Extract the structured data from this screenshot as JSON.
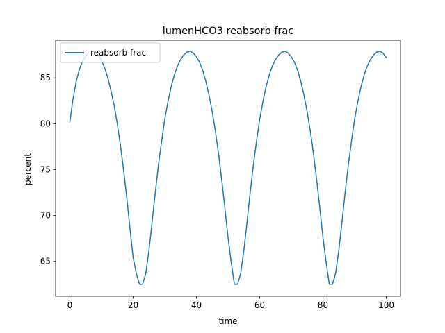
{
  "chart_data": {
    "type": "line",
    "title": "lumenHCO3 reabsorb frac",
    "xlabel": "time",
    "ylabel": "percent",
    "xlim": [
      -4.5,
      104.5
    ],
    "ylim": [
      61.2,
      89.1
    ],
    "xticks": [
      0,
      20,
      40,
      60,
      80,
      100
    ],
    "yticks": [
      65,
      70,
      75,
      80,
      85
    ],
    "grid": false,
    "legend": {
      "location": "upper left"
    },
    "series": [
      {
        "name": "reabsorb frac",
        "color": "#1f77b4",
        "x": [
          0,
          1,
          2,
          3,
          4,
          5,
          6,
          7,
          8,
          9,
          10,
          11,
          12,
          13,
          14,
          15,
          16,
          17,
          18,
          19,
          20,
          21,
          22,
          23,
          24,
          25,
          26,
          27,
          28,
          29,
          30,
          31,
          32,
          33,
          34,
          35,
          36,
          37,
          38,
          39,
          40,
          41,
          42,
          43,
          44,
          45,
          46,
          47,
          48,
          49,
          50,
          51,
          52,
          53,
          54,
          55,
          56,
          57,
          58,
          59,
          60,
          61,
          62,
          63,
          64,
          65,
          66,
          67,
          68,
          69,
          70,
          71,
          72,
          73,
          74,
          75,
          76,
          77,
          78,
          79,
          80,
          81,
          82,
          83,
          84,
          85,
          86,
          87,
          88,
          89,
          90,
          91,
          92,
          93,
          94,
          95,
          96,
          97,
          98,
          99,
          100
        ],
        "y": [
          80.2,
          82.7,
          84.6,
          85.9,
          86.8,
          87.4,
          87.8,
          87.9,
          87.8,
          87.5,
          86.9,
          86.1,
          85.0,
          83.6,
          82.0,
          80.0,
          77.6,
          74.9,
          71.9,
          68.6,
          65.4,
          63.7,
          62.5,
          62.5,
          63.7,
          66.2,
          69.3,
          72.5,
          75.5,
          78.1,
          80.5,
          82.4,
          84.0,
          85.3,
          86.3,
          87.0,
          87.5,
          87.8,
          87.9,
          87.7,
          87.3,
          86.7,
          85.8,
          84.6,
          83.1,
          81.3,
          79.2,
          76.7,
          73.9,
          70.8,
          67.6,
          64.9,
          62.5,
          62.5,
          63.7,
          66.2,
          69.3,
          72.5,
          75.5,
          78.1,
          80.5,
          82.4,
          84.0,
          85.3,
          86.3,
          87.0,
          87.5,
          87.8,
          87.9,
          87.7,
          87.3,
          86.7,
          85.8,
          84.6,
          83.1,
          81.3,
          79.2,
          76.7,
          73.9,
          70.8,
          67.6,
          64.9,
          62.5,
          62.5,
          63.7,
          66.2,
          69.3,
          72.5,
          75.5,
          78.1,
          80.5,
          82.4,
          84.0,
          85.3,
          86.3,
          87.0,
          87.5,
          87.8,
          87.9,
          87.7,
          87.2
        ]
      }
    ]
  }
}
